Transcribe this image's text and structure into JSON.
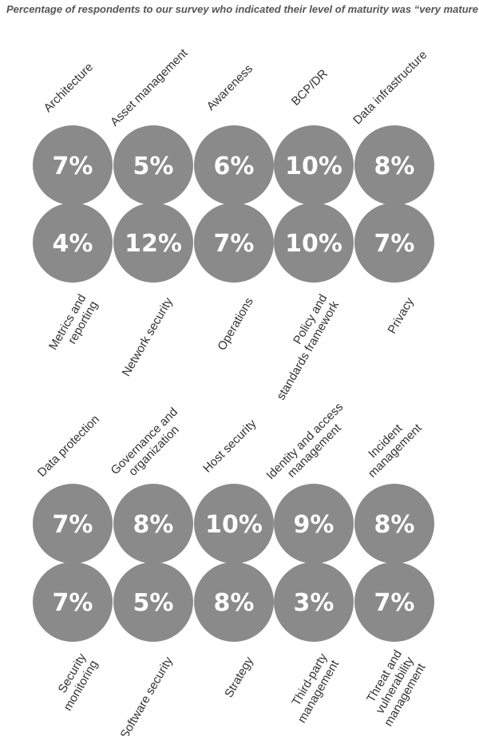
{
  "chart_data": {
    "type": "table",
    "title": "Percentage of respondents to our survey who indicated their level of maturity was “very mature”",
    "unit": "%",
    "circle_color": "#8a8a8a",
    "value_color": "#ffffff",
    "label_color": "#333333",
    "groups": [
      {
        "rows": [
          {
            "label_side": "top",
            "items": [
              {
                "label": [
                  "Architecture"
                ],
                "value": 7
              },
              {
                "label": [
                  "Asset management"
                ],
                "value": 5
              },
              {
                "label": [
                  "Awareness"
                ],
                "value": 6
              },
              {
                "label": [
                  "BCP/DR"
                ],
                "value": 10
              },
              {
                "label": [
                  "Data infrastructure"
                ],
                "value": 8
              }
            ]
          },
          {
            "label_side": "bottom",
            "items": [
              {
                "label": [
                  "Metrics and",
                  "reporting"
                ],
                "value": 4
              },
              {
                "label": [
                  "Network security"
                ],
                "value": 12
              },
              {
                "label": [
                  "Operations"
                ],
                "value": 7
              },
              {
                "label": [
                  "Policy and",
                  "standards framework"
                ],
                "value": 10
              },
              {
                "label": [
                  "Privacy"
                ],
                "value": 7
              }
            ]
          }
        ]
      },
      {
        "rows": [
          {
            "label_side": "top",
            "items": [
              {
                "label": [
                  "Data protection"
                ],
                "value": 7
              },
              {
                "label": [
                  "Governance and",
                  "organization"
                ],
                "value": 8
              },
              {
                "label": [
                  "Host security"
                ],
                "value": 10
              },
              {
                "label": [
                  "Identity and access",
                  "management"
                ],
                "value": 9
              },
              {
                "label": [
                  "Incident",
                  "management"
                ],
                "value": 8
              }
            ]
          },
          {
            "label_side": "bottom",
            "items": [
              {
                "label": [
                  "Security",
                  "monitoring"
                ],
                "value": 7
              },
              {
                "label": [
                  "Software security"
                ],
                "value": 5
              },
              {
                "label": [
                  "Strategy"
                ],
                "value": 8
              },
              {
                "label": [
                  "Third-party",
                  "management"
                ],
                "value": 3
              },
              {
                "label": [
                  "Threat and",
                  "vulnerability",
                  "management"
                ],
                "value": 7
              }
            ]
          }
        ]
      }
    ]
  }
}
